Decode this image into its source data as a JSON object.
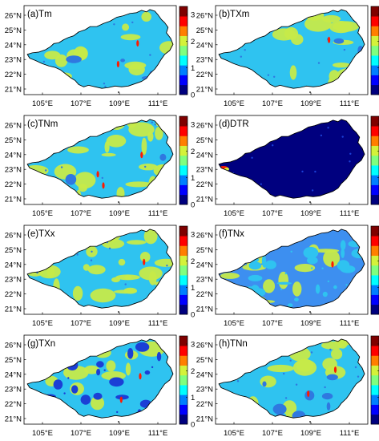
{
  "colorbar": {
    "ticks": [
      "0",
      "1",
      "2",
      "3"
    ],
    "colors": [
      "#00007f",
      "#0000ff",
      "#007fff",
      "#00ffff",
      "#7fff7f",
      "#d4f23a",
      "#ff7f00",
      "#ff0000",
      "#7f0000"
    ],
    "background_color": "#ffffff"
  },
  "lat_labels": [
    "21°N",
    "22°N",
    "23°N",
    "24°N",
    "25°N",
    "26°N"
  ],
  "lon_labels": [
    "105°E",
    "107°E",
    "109°E",
    "111°E"
  ],
  "panels": [
    {
      "label": "(a)Tm",
      "base_color": "#2fc3f0",
      "patch_color": "#c6ea49",
      "blue_color": "#2f78e0",
      "red_patches": 2,
      "patch_level": 0.3,
      "blue_level": 0.05
    },
    {
      "label": "(b)TXm",
      "base_color": "#2fc3f0",
      "patch_color": "#c6ea49",
      "blue_color": "#2f78e0",
      "red_patches": 1,
      "patch_level": 0.35,
      "blue_level": 0.08
    },
    {
      "label": "(c)TNm",
      "base_color": "#2fc3f0",
      "patch_color": "#c6ea49",
      "blue_color": "#2f78e0",
      "red_patches": 3,
      "patch_level": 0.45,
      "blue_level": 0.04
    },
    {
      "label": "(d)DTR",
      "base_color": "#00007f",
      "patch_color": "#00007f",
      "blue_color": "#00007f",
      "red_patches": 1,
      "patch_level": 0.0,
      "blue_level": 0.0
    },
    {
      "label": "(e)TXx",
      "base_color": "#2fc3f0",
      "patch_color": "#c6ea49",
      "blue_color": "#2f78e0",
      "red_patches": 1,
      "patch_level": 0.55,
      "blue_level": 0.03
    },
    {
      "label": "(f)TNx",
      "base_color": "#3d8ff0",
      "patch_color": "#c6ea49",
      "blue_color": "#2fc3f0",
      "red_patches": 1,
      "patch_level": 0.25,
      "blue_level": 0.35
    },
    {
      "label": "(g)TXn",
      "base_color": "#2fc3f0",
      "patch_color": "#c6ea49",
      "blue_color": "#1b3fd6",
      "red_patches": 2,
      "patch_level": 0.3,
      "blue_level": 0.25
    },
    {
      "label": "(h)TNn",
      "base_color": "#2fc3f0",
      "patch_color": "#c6ea49",
      "blue_color": "#2f78e0",
      "red_patches": 2,
      "patch_level": 0.3,
      "blue_level": 0.15
    }
  ]
}
